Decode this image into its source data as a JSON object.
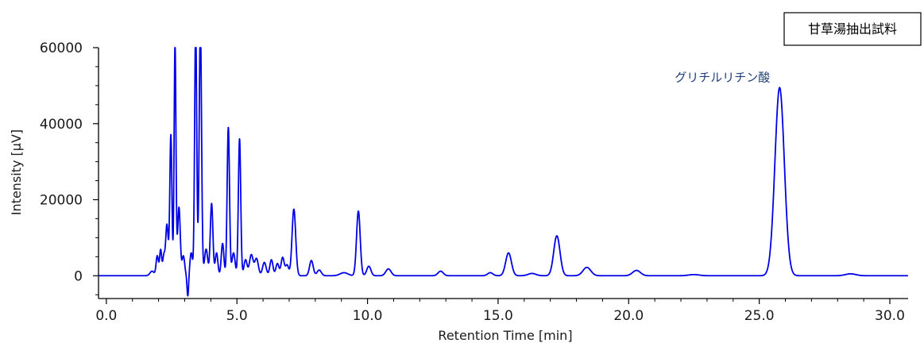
{
  "chart_data": {
    "type": "line",
    "xlabel": "Retention Time [min]",
    "ylabel": "Intensity [μV]",
    "xlim": [
      -0.3,
      30.7
    ],
    "ylim": [
      -6000,
      60000
    ],
    "grid": false,
    "legend_position": "top-right",
    "xticks": [
      {
        "value": 0,
        "label": "0.0"
      },
      {
        "value": 5,
        "label": "5.0"
      },
      {
        "value": 10,
        "label": "10.0"
      },
      {
        "value": 15,
        "label": "15.0"
      },
      {
        "value": 20,
        "label": "20.0"
      },
      {
        "value": 25,
        "label": "25.0"
      },
      {
        "value": 30,
        "label": "30.0"
      }
    ],
    "yticks": [
      {
        "value": 0,
        "label": "0"
      },
      {
        "value": 20000,
        "label": "20000"
      },
      {
        "value": 40000,
        "label": "40000"
      },
      {
        "value": 60000,
        "label": "60000"
      }
    ],
    "series": [
      {
        "name": "甘草湯抽出試料",
        "color": "#0000e6",
        "baseline": 0,
        "peaks": [
          {
            "rt": 1.75,
            "height": 1200,
            "width": 0.08
          },
          {
            "rt": 1.95,
            "height": 5200,
            "width": 0.045
          },
          {
            "rt": 2.08,
            "height": 6800,
            "width": 0.04
          },
          {
            "rt": 2.2,
            "height": 5000,
            "width": 0.04
          },
          {
            "rt": 2.32,
            "height": 13500,
            "width": 0.05
          },
          {
            "rt": 2.47,
            "height": 37000,
            "width": 0.04
          },
          {
            "rt": 2.63,
            "height": 61000,
            "width": 0.035
          },
          {
            "rt": 2.78,
            "height": 18000,
            "width": 0.05
          },
          {
            "rt": 2.95,
            "height": 5200,
            "width": 0.05
          },
          {
            "rt": 3.12,
            "height": -5500,
            "width": 0.03
          },
          {
            "rt": 3.25,
            "height": 6000,
            "width": 0.05
          },
          {
            "rt": 3.42,
            "height": 66000,
            "width": 0.04
          },
          {
            "rt": 3.6,
            "height": 66000,
            "width": 0.045
          },
          {
            "rt": 3.82,
            "height": 7000,
            "width": 0.06
          },
          {
            "rt": 4.03,
            "height": 19000,
            "width": 0.05
          },
          {
            "rt": 4.22,
            "height": 6000,
            "width": 0.05
          },
          {
            "rt": 4.45,
            "height": 8500,
            "width": 0.05
          },
          {
            "rt": 4.67,
            "height": 39000,
            "width": 0.045
          },
          {
            "rt": 4.87,
            "height": 6000,
            "width": 0.06
          },
          {
            "rt": 5.1,
            "height": 36000,
            "width": 0.045
          },
          {
            "rt": 5.33,
            "height": 4200,
            "width": 0.06
          },
          {
            "rt": 5.55,
            "height": 5500,
            "width": 0.07
          },
          {
            "rt": 5.75,
            "height": 4500,
            "width": 0.07
          },
          {
            "rt": 6.05,
            "height": 3500,
            "width": 0.07
          },
          {
            "rt": 6.32,
            "height": 4200,
            "width": 0.06
          },
          {
            "rt": 6.55,
            "height": 3200,
            "width": 0.06
          },
          {
            "rt": 6.75,
            "height": 4800,
            "width": 0.06
          },
          {
            "rt": 6.92,
            "height": 2800,
            "width": 0.06
          },
          {
            "rt": 7.18,
            "height": 17500,
            "width": 0.07
          },
          {
            "rt": 7.85,
            "height": 4000,
            "width": 0.07
          },
          {
            "rt": 8.15,
            "height": 1500,
            "width": 0.08
          },
          {
            "rt": 9.1,
            "height": 800,
            "width": 0.15
          },
          {
            "rt": 9.65,
            "height": 17000,
            "width": 0.07
          },
          {
            "rt": 10.05,
            "height": 2500,
            "width": 0.08
          },
          {
            "rt": 10.8,
            "height": 1800,
            "width": 0.1
          },
          {
            "rt": 12.8,
            "height": 1200,
            "width": 0.1
          },
          {
            "rt": 14.7,
            "height": 800,
            "width": 0.1
          },
          {
            "rt": 15.4,
            "height": 6000,
            "width": 0.11
          },
          {
            "rt": 16.3,
            "height": 600,
            "width": 0.15
          },
          {
            "rt": 17.25,
            "height": 10500,
            "width": 0.12
          },
          {
            "rt": 18.4,
            "height": 2200,
            "width": 0.15
          },
          {
            "rt": 20.3,
            "height": 1400,
            "width": 0.15
          },
          {
            "rt": 22.5,
            "height": 300,
            "width": 0.2
          },
          {
            "rt": 25.78,
            "height": 49500,
            "width": 0.18
          },
          {
            "rt": 28.5,
            "height": 500,
            "width": 0.2
          }
        ]
      }
    ],
    "annotations": [
      {
        "text": "グリチルリチン酸",
        "x": 25.78,
        "y": 49500,
        "color": "#1f3f7a"
      }
    ]
  }
}
